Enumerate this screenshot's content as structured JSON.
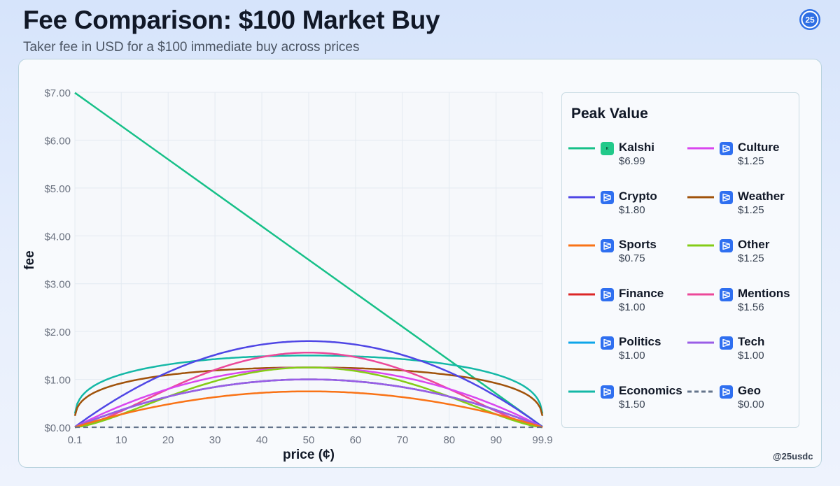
{
  "header": {
    "title": "Fee Comparison: $100 Market Buy",
    "subtitle": "Taker fee in USD for a $100 immediate buy across prices",
    "logo_text": "25"
  },
  "watermark": "@25usdc",
  "legend": {
    "title": "Peak Value",
    "items": [
      {
        "name": "Kalshi",
        "value": "$6.99",
        "color": "#16c088",
        "icon": "kalshi-logo-icon"
      },
      {
        "name": "Culture",
        "value": "$1.25",
        "color": "#d946ef",
        "icon": "polymarket-icon"
      },
      {
        "name": "Crypto",
        "value": "$1.80",
        "color": "#4f46e5",
        "icon": "polymarket-icon"
      },
      {
        "name": "Weather",
        "value": "$1.25",
        "color": "#a0520a",
        "icon": "polymarket-icon"
      },
      {
        "name": "Sports",
        "value": "$0.75",
        "color": "#f97316",
        "icon": "polymarket-icon"
      },
      {
        "name": "Other",
        "value": "$1.25",
        "color": "#84cc16",
        "icon": "polymarket-icon"
      },
      {
        "name": "Finance",
        "value": "$1.00",
        "color": "#dc2626",
        "icon": "polymarket-icon"
      },
      {
        "name": "Mentions",
        "value": "$1.56",
        "color": "#ec4899",
        "icon": "polymarket-icon"
      },
      {
        "name": "Politics",
        "value": "$1.00",
        "color": "#0ea5e9",
        "icon": "polymarket-icon"
      },
      {
        "name": "Tech",
        "value": "$1.00",
        "color": "#9a5de6",
        "icon": "polymarket-icon"
      },
      {
        "name": "Economics",
        "value": "$1.50",
        "color": "#14b8a6",
        "icon": "polymarket-icon"
      },
      {
        "name": "Geo",
        "value": "$0.00",
        "color": "#64748b",
        "icon": "polymarket-icon",
        "dashed": true
      }
    ]
  },
  "chart_data": {
    "type": "line",
    "title": "Fee Comparison: $100 Market Buy",
    "subtitle": "Taker fee in USD for a $100 immediate buy across prices",
    "xlabel": "price (¢)",
    "ylabel": "fee",
    "xlim": [
      0.1,
      99.9
    ],
    "ylim": [
      0,
      7
    ],
    "x_ticks": [
      0.1,
      10,
      20,
      30,
      40,
      50,
      60,
      70,
      80,
      90,
      99.9
    ],
    "x_tick_labels": [
      "0.1",
      "10",
      "20",
      "30",
      "40",
      "50",
      "60",
      "70",
      "80",
      "90",
      "99.9"
    ],
    "y_ticks": [
      0,
      1,
      2,
      3,
      4,
      5,
      6,
      7
    ],
    "y_tick_labels": [
      "$0.00",
      "$1.00",
      "$2.00",
      "$3.00",
      "$4.00",
      "$5.00",
      "$6.00",
      "$7.00"
    ],
    "grid": true,
    "legend_position": "right",
    "series": [
      {
        "name": "Kalshi",
        "peak": 6.99,
        "shape": "linear_decreasing",
        "color": "#16c088",
        "x": [
          0.1,
          99.9
        ],
        "y": [
          6.99,
          0.01
        ]
      },
      {
        "name": "Economics",
        "peak": 1.5,
        "shape": "flat_arc",
        "color": "#14b8a6"
      },
      {
        "name": "Weather",
        "peak": 1.25,
        "shape": "flat_arc",
        "color": "#a0520a"
      },
      {
        "name": "Crypto",
        "peak": 1.8,
        "shape": "arc",
        "color": "#4f46e5"
      },
      {
        "name": "Mentions",
        "peak": 1.56,
        "shape": "peaked_arc",
        "color": "#ec4899"
      },
      {
        "name": "Culture",
        "peak": 1.25,
        "shape": "arc",
        "color": "#d946ef"
      },
      {
        "name": "Other",
        "peak": 1.25,
        "shape": "peaked_arc",
        "color": "#84cc16"
      },
      {
        "name": "Finance",
        "peak": 1.0,
        "shape": "arc",
        "color": "#dc2626"
      },
      {
        "name": "Politics",
        "peak": 1.0,
        "shape": "arc",
        "color": "#0ea5e9"
      },
      {
        "name": "Tech",
        "peak": 1.0,
        "shape": "arc",
        "color": "#9a5de6"
      },
      {
        "name": "Sports",
        "peak": 0.75,
        "shape": "arc",
        "color": "#f97316"
      },
      {
        "name": "Geo",
        "peak": 0.0,
        "shape": "flat",
        "color": "#64748b",
        "dashed": true
      }
    ]
  }
}
